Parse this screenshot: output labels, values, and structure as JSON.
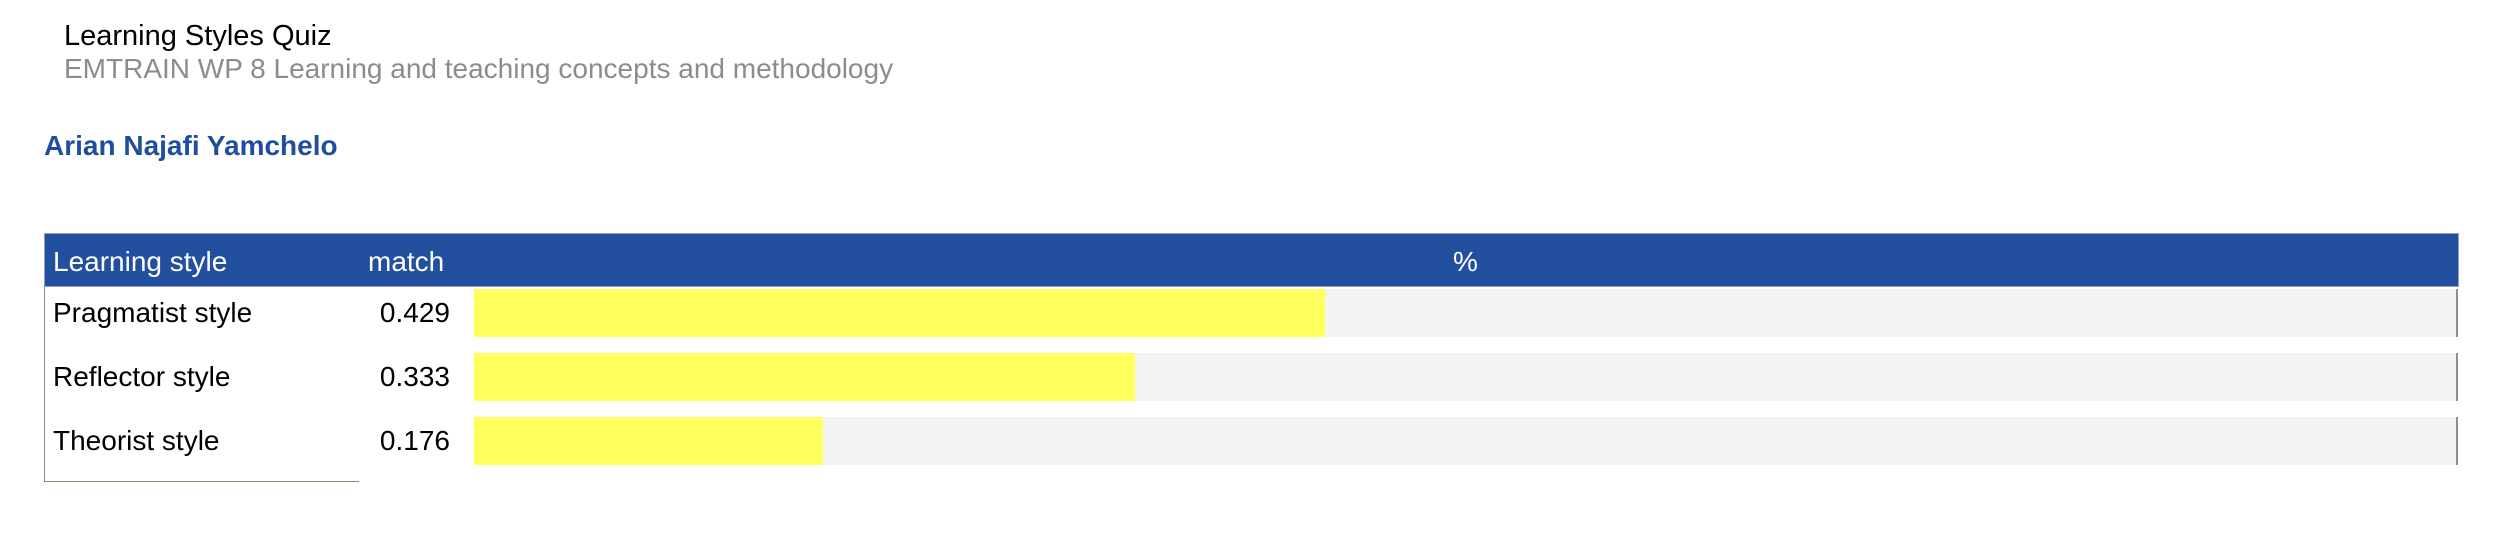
{
  "header": {
    "title": "Learning Styles Quiz",
    "subtitle": "EMTRAIN WP 8 Learning and teaching concepts and methodology",
    "person_name": "Arian Najafi Yamchelo"
  },
  "colors": {
    "header_background": "#23509e",
    "bar_fill": "#ffff5e",
    "bar_track": "#f3f3f3",
    "name_text": "#1f4e9e"
  },
  "chart_data": {
    "type": "bar",
    "orientation": "horizontal",
    "columns": [
      "Learning style",
      "match",
      "%"
    ],
    "categories": [
      "Pragmatist style",
      "Reflector style",
      "Theorist style"
    ],
    "values": [
      0.429,
      0.333,
      0.176
    ],
    "value_labels": [
      "0.429",
      "0.333",
      "0.176"
    ],
    "xlim": [
      0,
      1
    ]
  }
}
